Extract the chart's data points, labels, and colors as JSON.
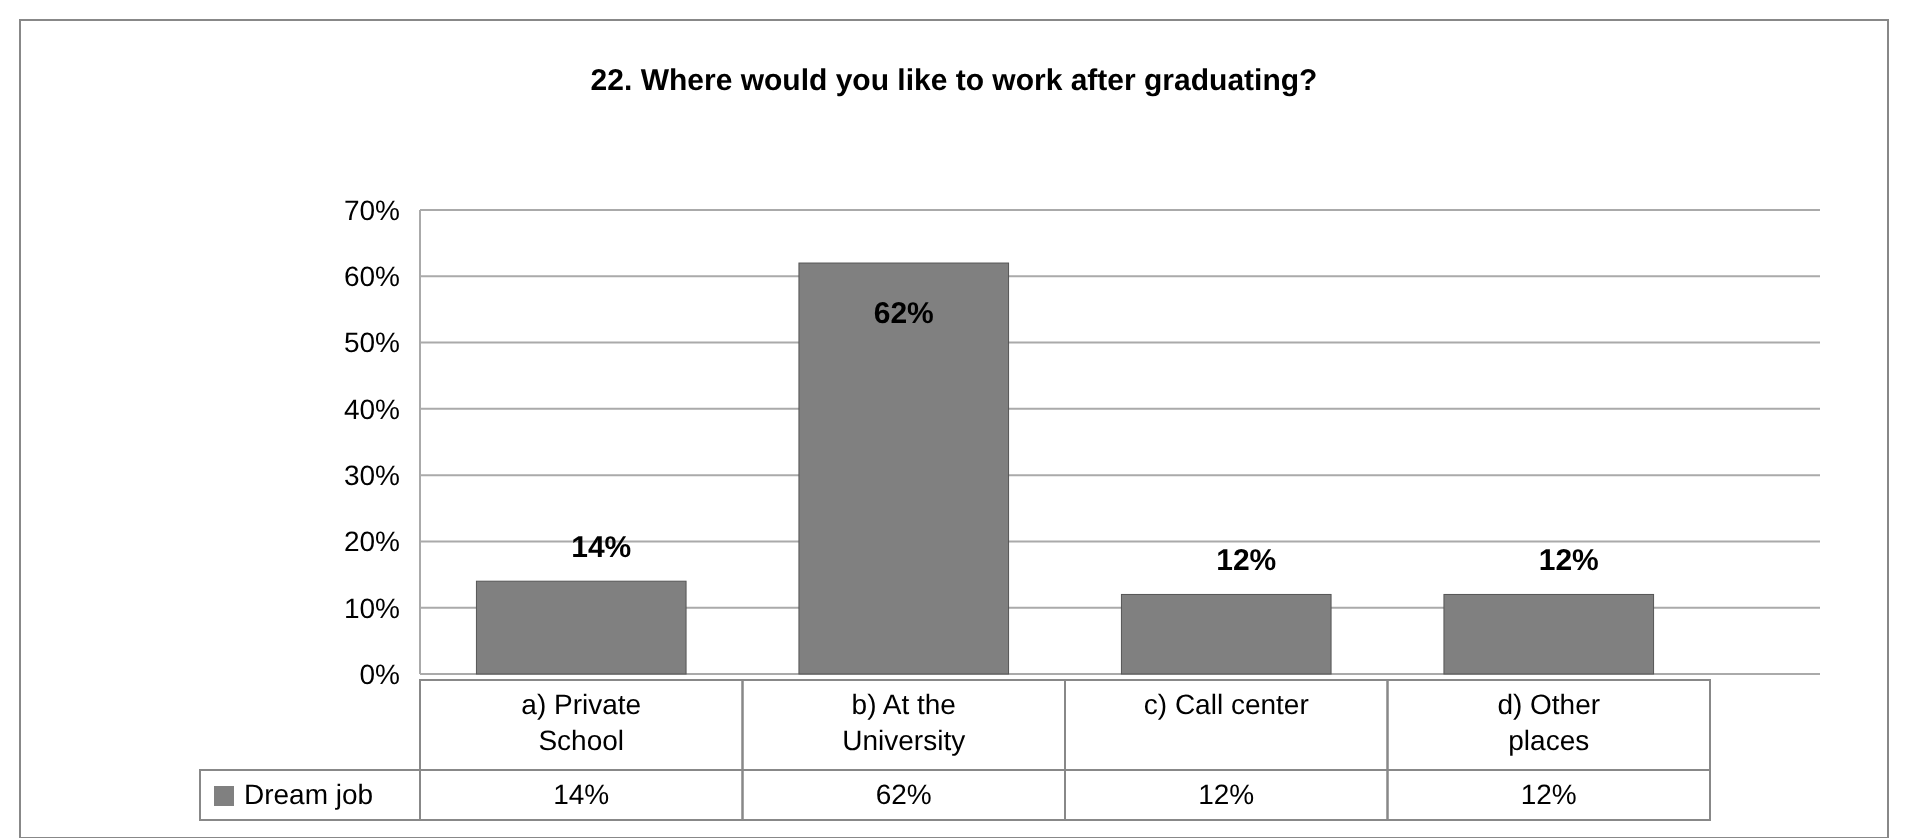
{
  "chart_data": {
    "type": "bar",
    "title": "22. Where would you like to work after graduating?",
    "categories": [
      "a) Private School",
      "b) At the University",
      "c) Call center",
      "d) Other places"
    ],
    "series": [
      {
        "name": "Dream job",
        "color": "#808080",
        "values": [
          14,
          62,
          12,
          12
        ],
        "value_labels": [
          "14%",
          "62%",
          "12%",
          "12%"
        ]
      }
    ],
    "ylim": [
      0,
      70
    ],
    "yticks": [
      {
        "value": 0,
        "label": "0%"
      },
      {
        "value": 10,
        "label": "10%"
      },
      {
        "value": 20,
        "label": "20%"
      },
      {
        "value": 30,
        "label": "30%"
      },
      {
        "value": 40,
        "label": "40%"
      },
      {
        "value": 50,
        "label": "50%"
      },
      {
        "value": 60,
        "label": "60%"
      },
      {
        "value": 70,
        "label": "70%"
      }
    ],
    "grid": "y",
    "legend": "bottom"
  }
}
